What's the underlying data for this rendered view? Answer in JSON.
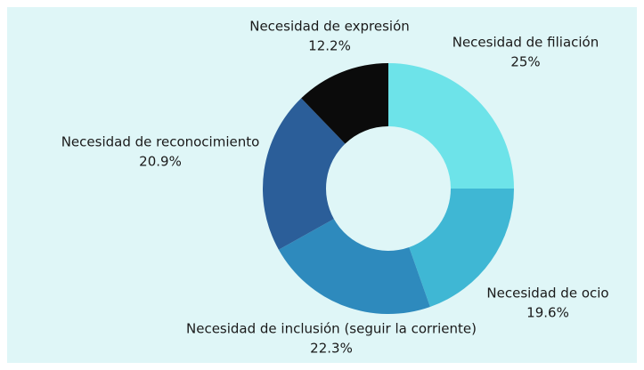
{
  "chart_data": {
    "type": "donut",
    "categories": [
      "Necesidad de filiación",
      "Necesidad de ocio",
      "Necesidad de inclusión (seguir la corriente)",
      "Necesidad de reconocimiento",
      "Necesidad de expresión"
    ],
    "values": [
      25,
      19.6,
      22.3,
      20.9,
      12.2
    ],
    "value_labels": [
      "25%",
      "19.6%",
      "22.3%",
      "20.9%",
      "12.2%"
    ],
    "colors": [
      "#6de3e9",
      "#3fb7d4",
      "#2e8abd",
      "#2b5e99",
      "#0b0b0b"
    ]
  }
}
